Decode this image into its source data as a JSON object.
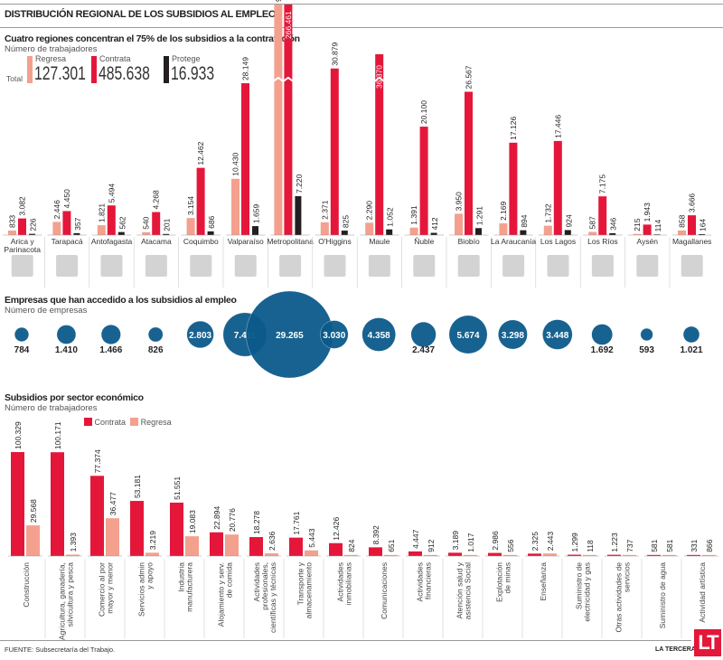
{
  "title": "DISTRIBUCIÓN REGIONAL DE LOS SUBSIDIOS AL EMPLEO",
  "colors": {
    "regresa": "#f4a08e",
    "contrata": "#e4173a",
    "protege": "#231f20",
    "empresas": "#0b5a8a",
    "logo": "#e4173a"
  },
  "regional": {
    "title": "Cuatro regiones concentran el 75% de los subsidios a la contratación",
    "subtitle": "Número de trabajadores",
    "total_label": "Total",
    "legend": [
      {
        "name": "Regresa",
        "total": "127.301"
      },
      {
        "name": "Contrata",
        "total": "485.638"
      },
      {
        "name": "Protege",
        "total": "16.933"
      }
    ]
  },
  "empresas": {
    "title": "Empresas que han accedido a los subsidios al empleo",
    "subtitle": "Número de empresas"
  },
  "sector": {
    "title": "Subsidios por sector económico",
    "subtitle": "Número de trabajadores",
    "legend": [
      "Contrata",
      "Regresa"
    ]
  },
  "footer": {
    "source": "FUENTE: Subsecretaría del Trabajo.",
    "brand": "LA TERCERA",
    "logo_text": "LT"
  },
  "chart_data": [
    {
      "type": "bar",
      "title": "Cuatro regiones concentran el 75% de los subsidios a la contratación",
      "ylabel": "Número de trabajadores",
      "categories": [
        "Arica y Parinacota",
        "Tarapacá",
        "Antofagasta",
        "Atacama",
        "Coquimbo",
        "Valparaíso",
        "Metropolitana",
        "O'Higgins",
        "Maule",
        "Ñuble",
        "Biobío",
        "La Araucanía",
        "Los Lagos",
        "Los Ríos",
        "Aysén",
        "Magallanes"
      ],
      "series": [
        {
          "name": "Regresa",
          "values": [
            833,
            2446,
            1821,
            540,
            3154,
            10430,
            92514,
            2371,
            2290,
            1391,
            3950,
            2169,
            1732,
            587,
            215,
            858
          ],
          "labels": [
            "833",
            "2.446",
            "1.821",
            "540",
            "3.154",
            "10.430",
            "92.514",
            "2.371",
            "2.290",
            "1.391",
            "3.950",
            "2.169",
            "1.732",
            "587",
            "215",
            "858"
          ]
        },
        {
          "name": "Contrata",
          "values": [
            3082,
            4450,
            5494,
            4268,
            12462,
            28149,
            266461,
            30879,
            36370,
            20100,
            26567,
            17126,
            17446,
            7175,
            1943,
            3666
          ],
          "labels": [
            "3.082",
            "4.450",
            "5.494",
            "4.268",
            "12.462",
            "28.149",
            "266.461",
            "30.879",
            "36.370",
            "20.100",
            "26.567",
            "17.126",
            "17.446",
            "7.175",
            "1.943",
            "3.666"
          ]
        },
        {
          "name": "Protege",
          "values": [
            226,
            357,
            562,
            201,
            686,
            1659,
            7220,
            825,
            1052,
            412,
            1291,
            894,
            924,
            346,
            114,
            164
          ],
          "labels": [
            "226",
            "357",
            "562",
            "201",
            "686",
            "1.659",
            "7.220",
            "825",
            "1.052",
            "412",
            "1.291",
            "894",
            "924",
            "346",
            "114",
            "164"
          ]
        }
      ]
    },
    {
      "type": "bubble",
      "title": "Empresas que han accedido a los subsidios al empleo",
      "ylabel": "Número de empresas",
      "categories": [
        "Arica y Parinacota",
        "Tarapacá",
        "Antofagasta",
        "Atacama",
        "Coquimbo",
        "Valparaíso",
        "Metropolitana",
        "O'Higgins",
        "Maule",
        "Ñuble",
        "Biobío",
        "La Araucanía",
        "Los Lagos",
        "Los Ríos",
        "Aysén",
        "Magallanes"
      ],
      "values": [
        784,
        1410,
        1466,
        826,
        2803,
        7411,
        29265,
        3030,
        4358,
        2437,
        5674,
        3298,
        3448,
        1692,
        593,
        1021
      ],
      "labels": [
        "784",
        "1.410",
        "1.466",
        "826",
        "2.803",
        "7.411",
        "29.265",
        "3.030",
        "4.358",
        "2.437",
        "5.674",
        "3.298",
        "3.448",
        "1.692",
        "593",
        "1.021"
      ]
    },
    {
      "type": "bar",
      "title": "Subsidios por sector económico",
      "ylabel": "Número de trabajadores",
      "categories": [
        [
          "Construcción"
        ],
        [
          "Agricultura, ganadería,",
          "silvicultura y pesca"
        ],
        [
          "Comercio al por",
          "mayor y menor"
        ],
        [
          "Servicios admin",
          "y apoyo"
        ],
        [
          "Industria",
          "manufacturera"
        ],
        [
          "Alojamiento y serv.",
          "de comida"
        ],
        [
          "Actividades",
          "profesionales,",
          "científicas y técnicas"
        ],
        [
          "Transporte y",
          "almacenamiento"
        ],
        [
          "Actividades",
          "inmobiliarias"
        ],
        [
          "Comunicaciones"
        ],
        [
          "Actividades",
          "financieras"
        ],
        [
          "Atención salud y",
          "asistencia Social"
        ],
        [
          "Explotación",
          "de minas"
        ],
        [
          "Enseñanza"
        ],
        [
          "Suministro de",
          "electricidad y gas"
        ],
        [
          "Otras actividades de",
          "servicios"
        ],
        [
          "Suministro de agua"
        ],
        [
          "Actividad artística"
        ]
      ],
      "series": [
        {
          "name": "Contrata",
          "values": [
            100329,
            100171,
            77374,
            53181,
            51551,
            22894,
            18278,
            17761,
            12426,
            8392,
            4447,
            3189,
            2986,
            2325,
            1299,
            1223,
            581,
            331
          ],
          "labels": [
            "100.329",
            "100.171",
            "77.374",
            "53.181",
            "51.551",
            "22.894",
            "18.278",
            "17.761",
            "12.426",
            "8.392",
            "4.447",
            "3.189",
            "2.986",
            "2.325",
            "1.299",
            "1.223",
            "581",
            "331"
          ]
        },
        {
          "name": "Regresa",
          "values": [
            29568,
            1393,
            36477,
            3219,
            19083,
            20776,
            2636,
            5443,
            824,
            651,
            912,
            1017,
            556,
            2443,
            118,
            737,
            581,
            866
          ],
          "labels": [
            "29.568",
            "1.393",
            "36.477",
            "3.219",
            "19.083",
            "20.776",
            "2.636",
            "5.443",
            "824",
            "651",
            "912",
            "1.017",
            "556",
            "2.443",
            "118",
            "737",
            "581",
            "866"
          ]
        }
      ]
    }
  ]
}
